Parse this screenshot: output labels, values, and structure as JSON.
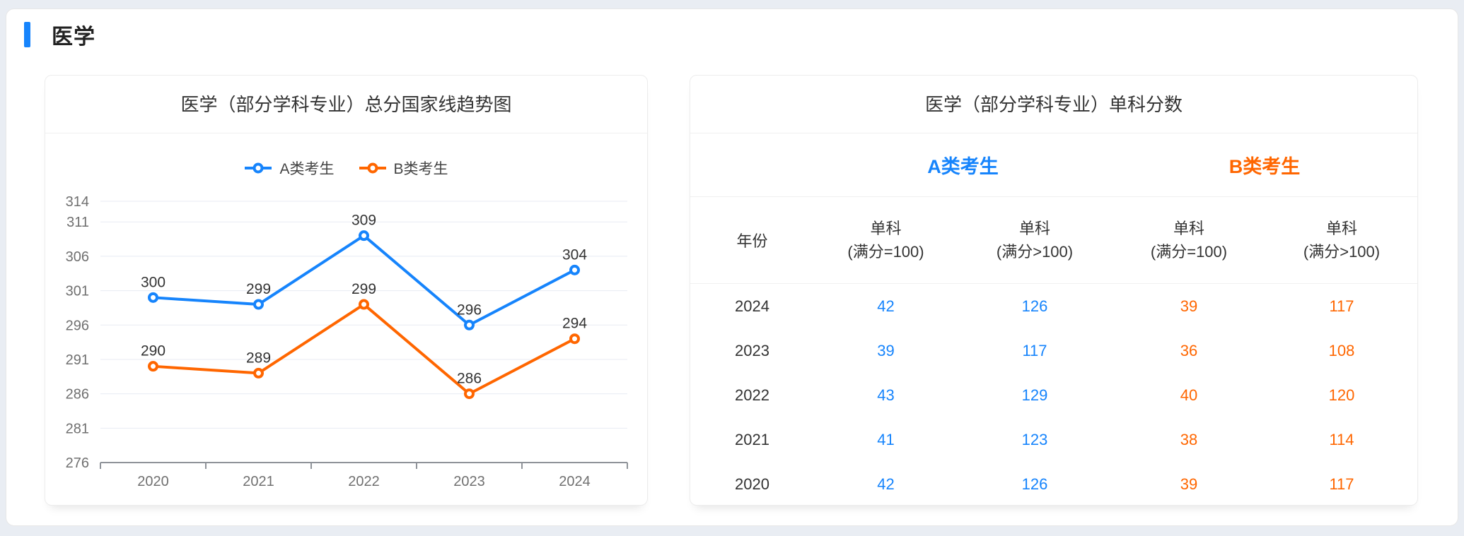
{
  "colors": {
    "a_blue": "#1684fc",
    "b_orange": "#ff6600",
    "axis_text": "#707070",
    "grid_line": "#e8ebf3",
    "axis_line": "#8f9399",
    "label_text": "#333333"
  },
  "section": {
    "title": "医学"
  },
  "trend_card": {
    "title": "医学（部分学科专业）总分国家线趋势图"
  },
  "chart_data": {
    "type": "line",
    "title": "医学（部分学科专业）总分国家线趋势图",
    "categories": [
      "2020",
      "2021",
      "2022",
      "2023",
      "2024"
    ],
    "series": [
      {
        "name": "A类考生",
        "color": "#1684fc",
        "values": [
          300,
          299,
          309,
          296,
          304
        ]
      },
      {
        "name": "B类考生",
        "color": "#ff6600",
        "values": [
          290,
          289,
          299,
          286,
          294
        ]
      }
    ],
    "y_ticks": [
      276,
      281,
      286,
      291,
      296,
      301,
      306,
      311,
      314
    ],
    "ylim": [
      276,
      314
    ],
    "xlabel": "",
    "ylabel": "",
    "grid": true,
    "legend_position": "top",
    "data_labels": true
  },
  "score_card": {
    "title": "医学（部分学科专业）单科分数",
    "groups": [
      {
        "label": "A类考生"
      },
      {
        "label": "B类考生"
      }
    ],
    "columns": [
      {
        "title": "年份",
        "note": ""
      },
      {
        "title": "单科",
        "note": "(满分=100)"
      },
      {
        "title": "单科",
        "note": "(满分>100)"
      },
      {
        "title": "单科",
        "note": "(满分=100)"
      },
      {
        "title": "单科",
        "note": "(满分>100)"
      }
    ],
    "rows": [
      {
        "year": "2024",
        "a1": "42",
        "a2": "126",
        "b1": "39",
        "b2": "117"
      },
      {
        "year": "2023",
        "a1": "39",
        "a2": "117",
        "b1": "36",
        "b2": "108"
      },
      {
        "year": "2022",
        "a1": "43",
        "a2": "129",
        "b1": "40",
        "b2": "120"
      },
      {
        "year": "2021",
        "a1": "41",
        "a2": "123",
        "b1": "38",
        "b2": "114"
      },
      {
        "year": "2020",
        "a1": "42",
        "a2": "126",
        "b1": "39",
        "b2": "117"
      }
    ]
  }
}
